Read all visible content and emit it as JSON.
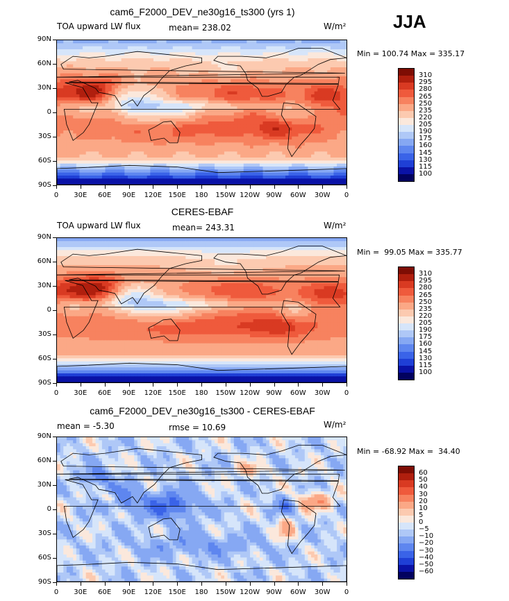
{
  "season": "JJA",
  "units": "W/m²",
  "panels": [
    {
      "title": "cam6_F2000_DEV_ne30g16_ts300 (yrs 1)",
      "left_label": "TOA upward LW flux",
      "center_label": "mean= 238.02",
      "minmax": "Min = 100.74 Max = 335.17",
      "levels": [
        "310",
        "295",
        "280",
        "265",
        "250",
        "235",
        "220",
        "205",
        "190",
        "175",
        "160",
        "145",
        "130",
        "115",
        "100"
      ]
    },
    {
      "title": "CERES-EBAF",
      "left_label": "TOA upward LW flux",
      "center_label": "mean= 243.31",
      "minmax": "Min =  99.05 Max = 335.77",
      "levels": [
        "310",
        "295",
        "280",
        "265",
        "250",
        "235",
        "220",
        "205",
        "190",
        "175",
        "160",
        "145",
        "130",
        "115",
        "100"
      ]
    },
    {
      "title": "cam6_F2000_DEV_ne30g16_ts300 - CERES-EBAF",
      "left_label": "mean =  -5.30",
      "center_label": "rmse =  10.69",
      "minmax": "Min = -68.92 Max =  34.40",
      "levels": [
        "60",
        "50",
        "40",
        "30",
        "20",
        "10",
        "5",
        "0",
        "−5",
        "−10",
        "−20",
        "−30",
        "−40",
        "−50",
        "−60"
      ]
    }
  ],
  "lat_ticks": [
    "90N",
    "60N",
    "30N",
    "0",
    "30S",
    "60S",
    "90S"
  ],
  "lon_ticks": [
    "0",
    "30E",
    "60E",
    "90E",
    "120E",
    "150E",
    "180",
    "150W",
    "120W",
    "90W",
    "60W",
    "30W",
    "0"
  ],
  "chart_data": [
    {
      "type": "heatmap",
      "title": "cam6_F2000_DEV_ne30g16_ts300 (yrs 1)",
      "variable": "TOA upward LW flux",
      "units": "W/m²",
      "mean": 238.02,
      "min": 100.74,
      "max": 335.17,
      "lat_range": [
        -90,
        90
      ],
      "lon_range": [
        0,
        360
      ],
      "contour_levels": [
        100,
        115,
        130,
        145,
        160,
        175,
        190,
        205,
        220,
        235,
        250,
        265,
        280,
        295,
        310
      ],
      "colors": [
        "#02025f",
        "#0a12a6",
        "#1f3fd6",
        "#3a63e8",
        "#5e86ef",
        "#86a8f3",
        "#afc8f7",
        "#d6e5fa",
        "#fbe8dc",
        "#fccab0",
        "#fba886",
        "#f7825f",
        "#ef5a3c",
        "#d93a22",
        "#b01f0e",
        "#7e0d04"
      ]
    },
    {
      "type": "heatmap",
      "title": "CERES-EBAF",
      "variable": "TOA upward LW flux",
      "units": "W/m²",
      "mean": 243.31,
      "min": 99.05,
      "max": 335.77,
      "lat_range": [
        -90,
        90
      ],
      "lon_range": [
        0,
        360
      ],
      "contour_levels": [
        100,
        115,
        130,
        145,
        160,
        175,
        190,
        205,
        220,
        235,
        250,
        265,
        280,
        295,
        310
      ]
    },
    {
      "type": "heatmap",
      "title": "cam6_F2000_DEV_ne30g16_ts300 - CERES-EBAF",
      "units": "W/m²",
      "mean": -5.3,
      "rmse": 10.69,
      "min": -68.92,
      "max": 34.4,
      "lat_range": [
        -90,
        90
      ],
      "lon_range": [
        0,
        360
      ],
      "contour_levels": [
        -60,
        -50,
        -40,
        -30,
        -20,
        -10,
        -5,
        0,
        5,
        10,
        20,
        30,
        40,
        50,
        60
      ]
    }
  ],
  "colors": {
    "seq": [
      "#7e0d04",
      "#b01f0e",
      "#d93a22",
      "#ef5a3c",
      "#f7825f",
      "#fba886",
      "#fccab0",
      "#fbe8dc",
      "#d6e5fa",
      "#afc8f7",
      "#86a8f3",
      "#5e86ef",
      "#3a63e8",
      "#1f3fd6",
      "#0a12a6",
      "#02025f"
    ],
    "diff": [
      "#7e0d04",
      "#b01f0e",
      "#d93a22",
      "#ef5a3c",
      "#f7825f",
      "#fba886",
      "#fccab0",
      "#fbe8dc",
      "#d6e5fa",
      "#afc8f7",
      "#86a8f3",
      "#5e86ef",
      "#3a63e8",
      "#1f3fd6",
      "#0a12a6",
      "#02025f"
    ]
  }
}
